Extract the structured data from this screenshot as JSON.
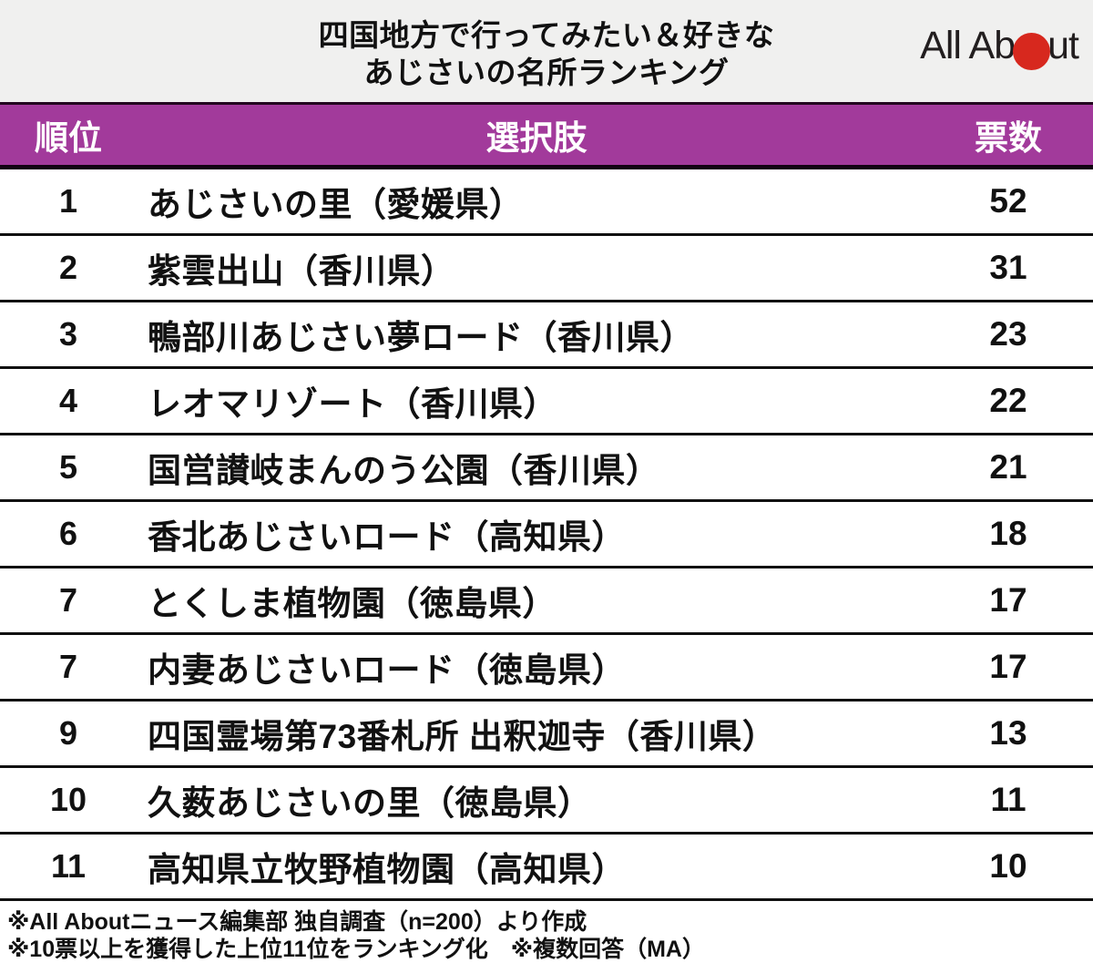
{
  "header": {
    "title_line1": "四国地方で行ってみたい＆好きな",
    "title_line2": "あじさいの名所ランキング",
    "logo": {
      "brand": "All About",
      "text_before": "All Ab",
      "text_after": "ut",
      "dot_color": "#D7281E"
    }
  },
  "table": {
    "columns": [
      "順位",
      "選択肢",
      "票数"
    ],
    "rows": [
      {
        "rank": "1",
        "name": "あじさいの里（愛媛県）",
        "votes": "52"
      },
      {
        "rank": "2",
        "name": "紫雲出山（香川県）",
        "votes": "31"
      },
      {
        "rank": "3",
        "name": "鴨部川あじさい夢ロード（香川県）",
        "votes": "23"
      },
      {
        "rank": "4",
        "name": "レオマリゾート（香川県）",
        "votes": "22"
      },
      {
        "rank": "5",
        "name": "国営讃岐まんのう公園（香川県）",
        "votes": "21"
      },
      {
        "rank": "6",
        "name": "香北あじさいロード（高知県）",
        "votes": "18"
      },
      {
        "rank": "7",
        "name": "とくしま植物園（徳島県）",
        "votes": "17"
      },
      {
        "rank": "7",
        "name": "内妻あじさいロード（徳島県）",
        "votes": "17"
      },
      {
        "rank": "9",
        "name": "四国霊場第73番札所 出釈迦寺（香川県）",
        "votes": "13"
      },
      {
        "rank": "10",
        "name": "久薮あじさいの里（徳島県）",
        "votes": "11"
      },
      {
        "rank": "11",
        "name": "高知県立牧野植物園（高知県）",
        "votes": "10"
      }
    ]
  },
  "footer": {
    "note1": "※All Aboutニュース編集部 独自調査（n=200）より作成",
    "note2": "※10票以上を獲得した上位11位をランキング化　※複数回答（MA）"
  },
  "colors": {
    "accent_purple": "#A23A9B",
    "logo_red": "#D7281E",
    "title_band_bg": "#F0F0EF",
    "row_border": "#111111"
  },
  "chart_data": {
    "type": "table",
    "title": "四国地方で行ってみたい＆好きな あじさいの名所ランキング",
    "columns": [
      "順位",
      "選択肢",
      "票数"
    ],
    "ranks": [
      1,
      2,
      3,
      4,
      5,
      6,
      7,
      7,
      9,
      10,
      11
    ],
    "categories": [
      "あじさいの里（愛媛県）",
      "紫雲出山（香川県）",
      "鴨部川あじさい夢ロード（香川県）",
      "レオマリゾート（香川県）",
      "国営讃岐まんのう公園（香川県）",
      "香北あじさいロード（高知県）",
      "とくしま植物園（徳島県）",
      "内妻あじさいロード（徳島県）",
      "四国霊場第73番札所 出釈迦寺（香川県）",
      "久薮あじさいの里（徳島県）",
      "高知県立牧野植物園（高知県）"
    ],
    "values": [
      52,
      31,
      23,
      22,
      21,
      18,
      17,
      17,
      13,
      11,
      10
    ],
    "notes": [
      "※All Aboutニュース編集部 独自調査（n=200）より作成",
      "※10票以上を獲得した上位11位をランキング化　※複数回答（MA）"
    ]
  }
}
